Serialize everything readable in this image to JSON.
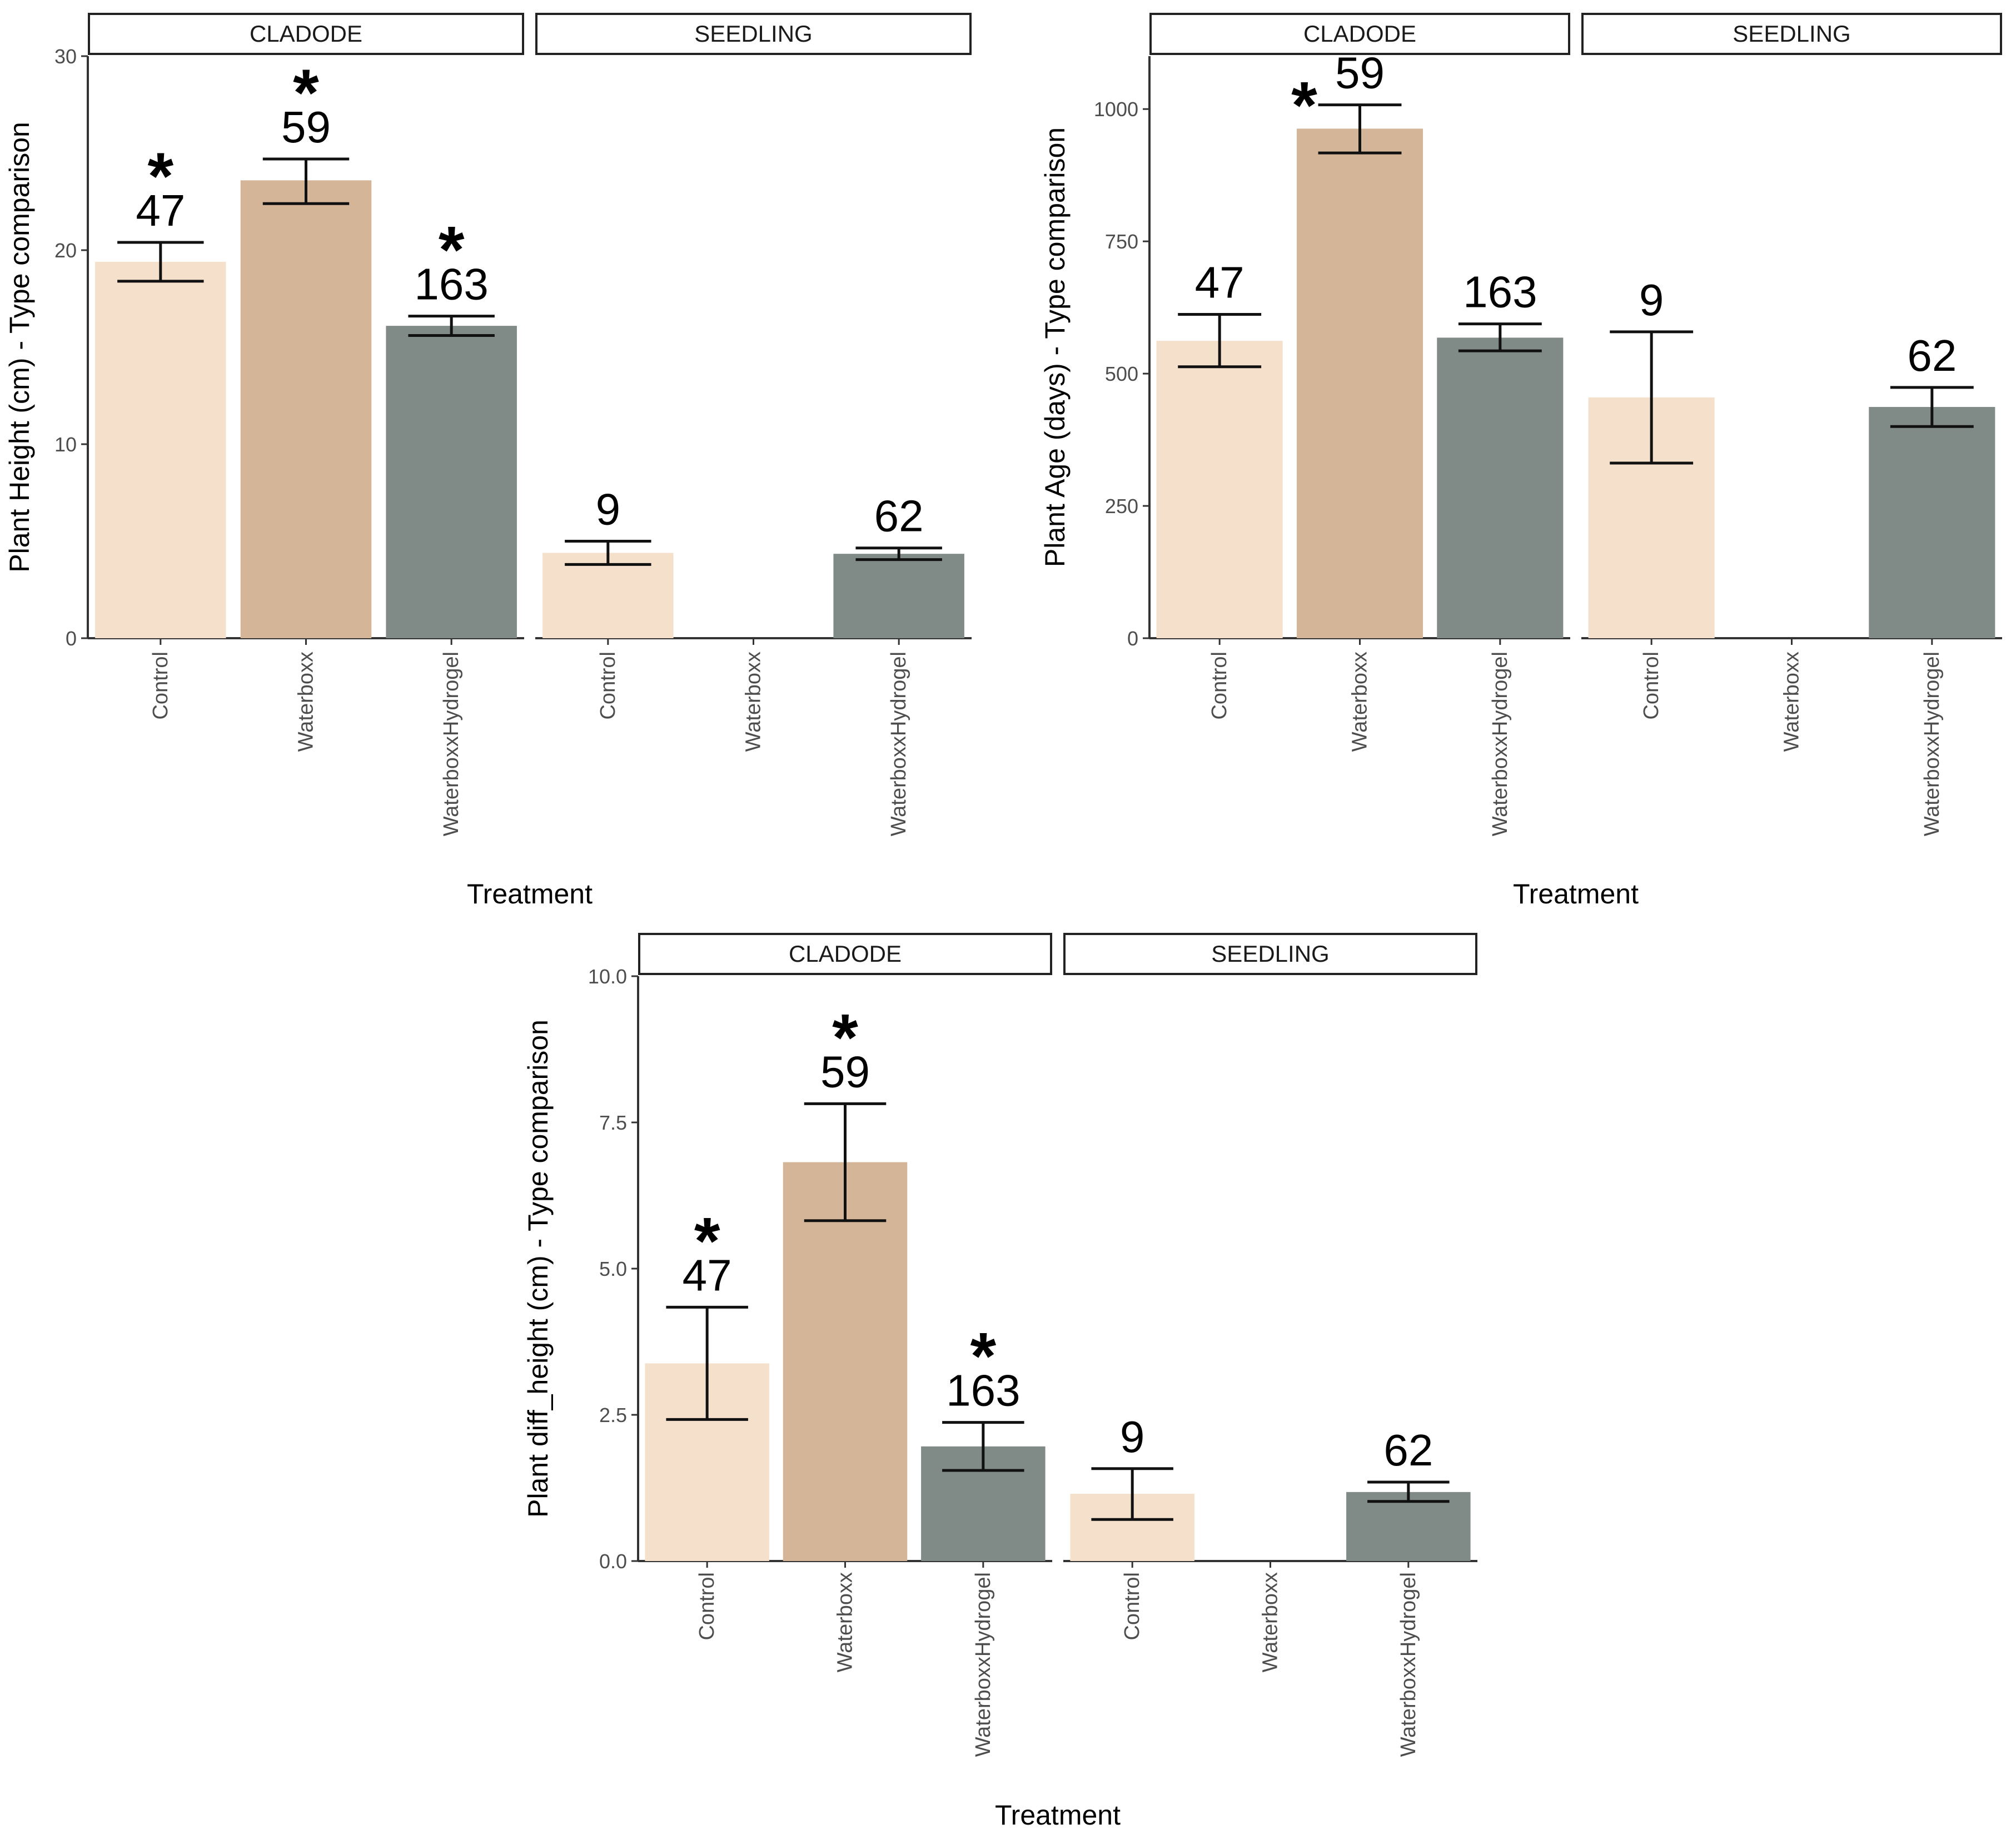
{
  "colors": {
    "Control": "#f5e0cc",
    "Waterboxx": "#d4b597",
    "WaterboxxHydrogel": "#808a86",
    "axis": "#333333",
    "strip_border": "#222222",
    "error_bar": "#111111"
  },
  "chart_data": [
    {
      "id": "height",
      "type": "bar",
      "ylabel": "Plant Height (cm) - Type comparison",
      "xlabel": "Treatment",
      "ylim": [
        0,
        30
      ],
      "yticks": [
        0,
        10,
        20,
        30
      ],
      "ytick_labels": [
        "0",
        "10",
        "20",
        "30"
      ],
      "facets": [
        {
          "strip": "CLADODE",
          "bars": [
            {
              "category": "Control",
              "value": 19.4,
              "err_low": 18.4,
              "err_high": 20.4,
              "n": "47",
              "sig": true
            },
            {
              "category": "Waterboxx",
              "value": 23.6,
              "err_low": 22.4,
              "err_high": 24.7,
              "n": "59",
              "sig": true
            },
            {
              "category": "WaterboxxHydrogel",
              "value": 16.1,
              "err_low": 15.6,
              "err_high": 16.6,
              "n": "163",
              "sig": true
            }
          ]
        },
        {
          "strip": "SEEDLING",
          "bars": [
            {
              "category": "Control",
              "value": 4.4,
              "err_low": 3.8,
              "err_high": 5.0,
              "n": "9",
              "sig": false
            },
            {
              "category": "Waterboxx",
              "value": null,
              "n": null,
              "sig": false
            },
            {
              "category": "WaterboxxHydrogel",
              "value": 4.35,
              "err_low": 4.05,
              "err_high": 4.65,
              "n": "62",
              "sig": false
            }
          ]
        }
      ]
    },
    {
      "id": "age",
      "type": "bar",
      "ylabel": "Plant Age (days) - Type comparison",
      "xlabel": "Treatment",
      "ylim": [
        0,
        1100
      ],
      "yticks": [
        0,
        250,
        500,
        750,
        1000
      ],
      "ytick_labels": [
        "0",
        "250",
        "500",
        "750",
        "1000"
      ],
      "facets": [
        {
          "strip": "CLADODE",
          "bars": [
            {
              "category": "Control",
              "value": 562,
              "err_low": 513,
              "err_high": 612,
              "n": "47",
              "sig": false
            },
            {
              "category": "Waterboxx",
              "value": 963,
              "err_low": 917,
              "err_high": 1008,
              "n": "59",
              "sig": true
            },
            {
              "category": "WaterboxxHydrogel",
              "value": 568,
              "err_low": 543,
              "err_high": 594,
              "n": "163",
              "sig": false
            }
          ]
        },
        {
          "strip": "SEEDLING",
          "bars": [
            {
              "category": "Control",
              "value": 455,
              "err_low": 331,
              "err_high": 579,
              "n": "9",
              "sig": false
            },
            {
              "category": "Waterboxx",
              "value": null,
              "n": null,
              "sig": false
            },
            {
              "category": "WaterboxxHydrogel",
              "value": 437,
              "err_low": 400,
              "err_high": 474,
              "n": "62",
              "sig": false
            }
          ]
        }
      ]
    },
    {
      "id": "diff_height",
      "type": "bar",
      "ylabel": "Plant diff_height (cm) - Type comparison",
      "xlabel": "Treatment",
      "ylim": [
        0,
        10
      ],
      "yticks": [
        0,
        2.5,
        5,
        7.5,
        10
      ],
      "ytick_labels": [
        "0.0",
        "2.5",
        "5.0",
        "7.5",
        "10.0"
      ],
      "facets": [
        {
          "strip": "CLADODE",
          "bars": [
            {
              "category": "Control",
              "value": 3.38,
              "err_low": 2.42,
              "err_high": 4.34,
              "n": "47",
              "sig": true
            },
            {
              "category": "Waterboxx",
              "value": 6.82,
              "err_low": 5.82,
              "err_high": 7.82,
              "n": "59",
              "sig": true
            },
            {
              "category": "WaterboxxHydrogel",
              "value": 1.96,
              "err_low": 1.55,
              "err_high": 2.37,
              "n": "163",
              "sig": true
            }
          ]
        },
        {
          "strip": "SEEDLING",
          "bars": [
            {
              "category": "Control",
              "value": 1.15,
              "err_low": 0.71,
              "err_high": 1.58,
              "n": "9",
              "sig": false
            },
            {
              "category": "Waterboxx",
              "value": null,
              "n": null,
              "sig": false
            },
            {
              "category": "WaterboxxHydrogel",
              "value": 1.18,
              "err_low": 1.02,
              "err_high": 1.35,
              "n": "62",
              "sig": false
            }
          ]
        }
      ]
    }
  ],
  "sig_marker": "*"
}
